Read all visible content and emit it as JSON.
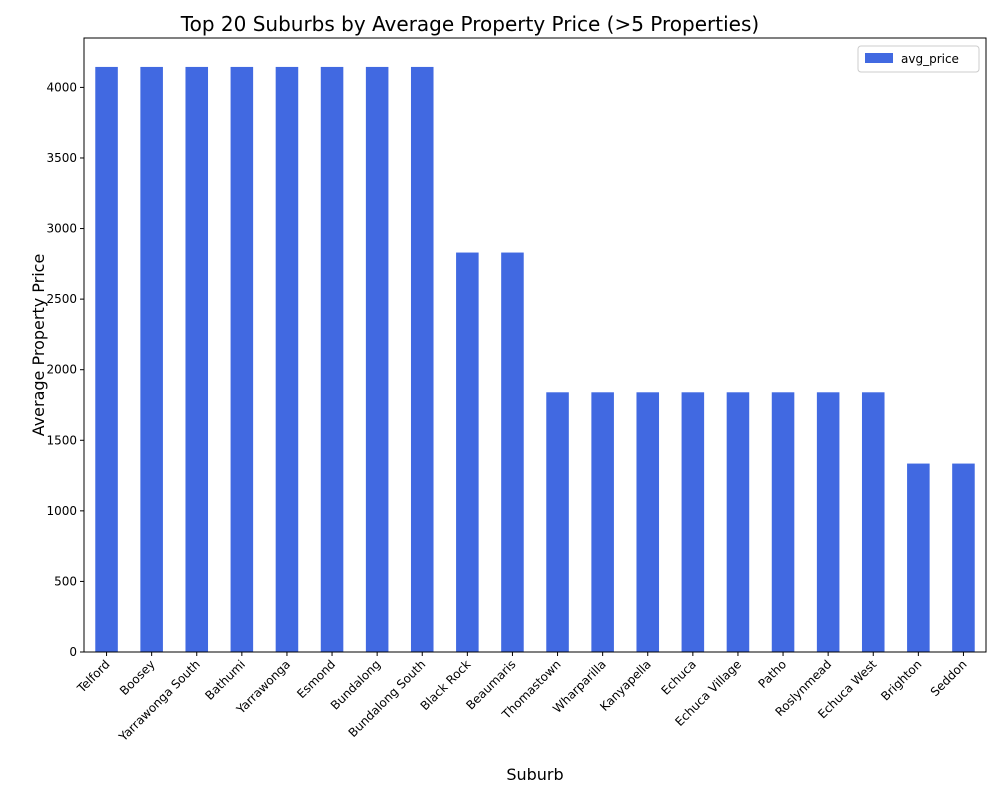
{
  "chart_data": {
    "type": "bar",
    "title": "Top 20 Suburbs by Average Property Price (>5 Properties)",
    "xlabel": "Suburb",
    "ylabel": "Average Property Price",
    "ylim": [
      0,
      4350
    ],
    "yticks": [
      0,
      500,
      1000,
      1500,
      2000,
      2500,
      3000,
      3500,
      4000
    ],
    "legend_position": "top-right",
    "grid": false,
    "series": [
      {
        "name": "avg_price",
        "color": "#4169e1",
        "values": [
          4145,
          4145,
          4145,
          4145,
          4145,
          4145,
          4145,
          4145,
          2830,
          2830,
          1840,
          1840,
          1840,
          1840,
          1840,
          1840,
          1840,
          1840,
          1335,
          1335
        ]
      }
    ],
    "categories": [
      "Telford",
      "Boosey",
      "Yarrawonga South",
      "Bathumi",
      "Yarrawonga",
      "Esmond",
      "Bundalong",
      "Bundalong South",
      "Black Rock",
      "Beaumaris",
      "Thomastown",
      "Wharparilla",
      "Kanyapella",
      "Echuca",
      "Echuca Village",
      "Patho",
      "Roslynmead",
      "Echuca West",
      "Brighton",
      "Seddon"
    ]
  }
}
